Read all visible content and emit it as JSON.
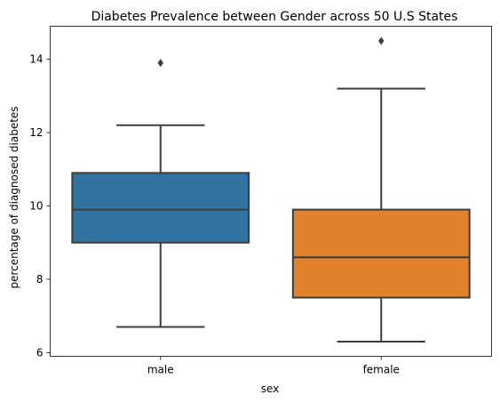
{
  "chart_data": {
    "type": "box",
    "title": "Diabetes Prevalence between Gender across 50 U.S States",
    "xlabel": "sex",
    "ylabel": "percentage of diagnosed diabetes",
    "ylim": [
      5.9,
      14.9
    ],
    "yticks": [
      6,
      8,
      10,
      12,
      14
    ],
    "grid": false,
    "categories": [
      "male",
      "female"
    ],
    "boxes": [
      {
        "category": "male",
        "whisker_low": 6.7,
        "q1": 9.0,
        "median": 9.9,
        "q3": 10.9,
        "whisker_high": 12.2,
        "outliers": [
          13.9
        ],
        "color": "#3274a1"
      },
      {
        "category": "female",
        "whisker_low": 6.3,
        "q1": 7.5,
        "median": 8.6,
        "q3": 9.9,
        "whisker_high": 13.2,
        "outliers": [
          14.5
        ],
        "color": "#e1812c"
      }
    ]
  }
}
